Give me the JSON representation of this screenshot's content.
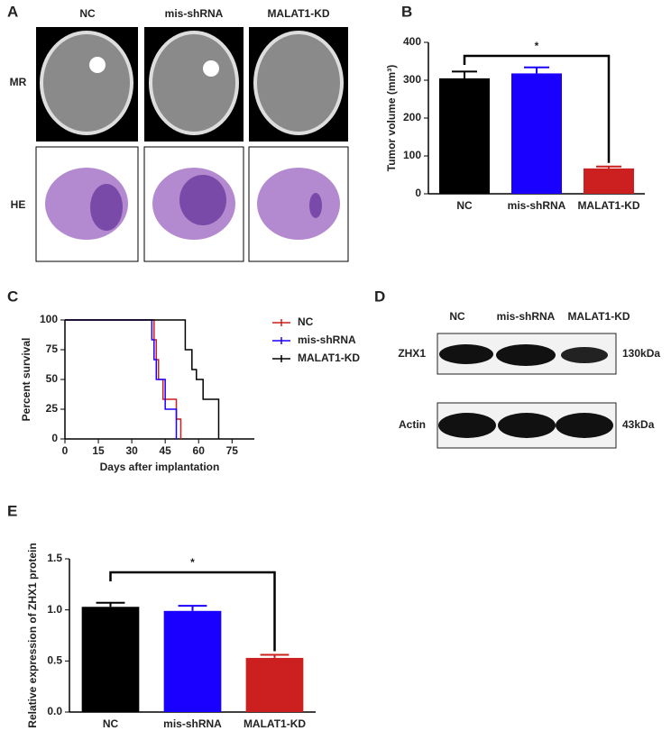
{
  "panel_a": {
    "panel": "A",
    "columns": [
      "NC",
      "mis-shRNA",
      "MALAT1-KD"
    ],
    "rows": [
      "MR",
      "HE"
    ]
  },
  "panel_d": {
    "panel": "D",
    "columns": [
      "NC",
      "mis-shRNA",
      "MALAT1-KD"
    ],
    "bands": [
      {
        "name": "ZHX1",
        "size": "130kDa"
      },
      {
        "name": "Actin",
        "size": "43kDa"
      }
    ]
  },
  "chart_data": [
    {
      "type": "bar",
      "panel": "B",
      "ylabel": "Tumor volume (mm³)",
      "categories": [
        "NC",
        "mis-shRNA",
        "MALAT1-KD"
      ],
      "values": [
        305,
        318,
        67
      ],
      "errors": [
        18,
        16,
        5
      ],
      "colors": [
        "#000000",
        "#1a00ff",
        "#cc1f1f"
      ],
      "ylim": [
        0,
        400
      ],
      "yticks": [
        0,
        100,
        200,
        300,
        400
      ],
      "annotation": "*"
    },
    {
      "type": "line",
      "panel": "C",
      "xlabel": "Days after implantation",
      "ylabel": "Percent survival",
      "xlim": [
        0,
        85
      ],
      "xticks": [
        0,
        15,
        30,
        45,
        60,
        75
      ],
      "ylim": [
        0,
        100
      ],
      "yticks": [
        0,
        25,
        50,
        75,
        100
      ],
      "legend": "top-right",
      "series": [
        {
          "name": "NC",
          "color": "#cc1f1f",
          "x": [
            0,
            40,
            41,
            42,
            44,
            50,
            52
          ],
          "values": [
            100,
            83.3,
            66.7,
            50,
            33.3,
            16.7,
            0
          ]
        },
        {
          "name": "mis-shRNA",
          "color": "#1a00ff",
          "x": [
            0,
            39,
            40,
            41,
            45,
            50
          ],
          "values": [
            100,
            83.3,
            66.7,
            50,
            25,
            0
          ]
        },
        {
          "name": "MALAT1-KD",
          "color": "#000000",
          "x": [
            0,
            54,
            57,
            59,
            62,
            69
          ],
          "values": [
            100,
            75,
            58.3,
            50,
            33.3,
            0
          ]
        }
      ]
    },
    {
      "type": "bar",
      "panel": "E",
      "ylabel": "Relative expression of ZHX1 protein",
      "categories": [
        "NC",
        "mis-shRNA",
        "MALAT1-KD"
      ],
      "values": [
        1.03,
        0.99,
        0.53
      ],
      "errors": [
        0.04,
        0.05,
        0.03
      ],
      "colors": [
        "#000000",
        "#1a00ff",
        "#cc1f1f"
      ],
      "ylim": [
        0,
        1.5
      ],
      "yticks": [
        {
          "value": 0,
          "label": "0.0"
        },
        {
          "value": 0.5,
          "label": "0.5"
        },
        {
          "value": 1,
          "label": "1.0"
        },
        {
          "value": 1.5,
          "label": "1.5"
        }
      ],
      "annotation": "*"
    }
  ]
}
